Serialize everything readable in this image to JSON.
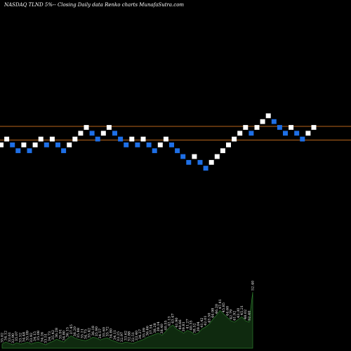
{
  "header": {
    "title": "NASDAQ TLND 5%-- Closing Daily data Renko charts MunafaSutra.com"
  },
  "colors": {
    "background": "#000000",
    "up_brick": "#ffffff",
    "down_brick": "#1e6fe6",
    "level_line": "#b8651a",
    "volume_fill": "#0f2a0f",
    "volume_stroke": "#2e7d2e"
  },
  "chart_data": {
    "type": "renko",
    "brick_percent": 5,
    "reference_lines": [
      1,
      -1
    ],
    "bricks": [
      {
        "dir": "up",
        "level": 0
      },
      {
        "dir": "up",
        "level": 1
      },
      {
        "dir": "down",
        "level": 0
      },
      {
        "dir": "down",
        "level": -1
      },
      {
        "dir": "up",
        "level": 0
      },
      {
        "dir": "down",
        "level": -1
      },
      {
        "dir": "up",
        "level": 0
      },
      {
        "dir": "up",
        "level": 1
      },
      {
        "dir": "down",
        "level": 0
      },
      {
        "dir": "up",
        "level": 1
      },
      {
        "dir": "down",
        "level": 0
      },
      {
        "dir": "down",
        "level": -1
      },
      {
        "dir": "up",
        "level": 0
      },
      {
        "dir": "up",
        "level": 1
      },
      {
        "dir": "up",
        "level": 2
      },
      {
        "dir": "up",
        "level": 3
      },
      {
        "dir": "down",
        "level": 2
      },
      {
        "dir": "down",
        "level": 1
      },
      {
        "dir": "up",
        "level": 2
      },
      {
        "dir": "up",
        "level": 3
      },
      {
        "dir": "down",
        "level": 2
      },
      {
        "dir": "down",
        "level": 1
      },
      {
        "dir": "down",
        "level": 0
      },
      {
        "dir": "up",
        "level": 1
      },
      {
        "dir": "down",
        "level": 0
      },
      {
        "dir": "up",
        "level": 1
      },
      {
        "dir": "down",
        "level": 0
      },
      {
        "dir": "down",
        "level": -1
      },
      {
        "dir": "up",
        "level": 0
      },
      {
        "dir": "up",
        "level": 1
      },
      {
        "dir": "down",
        "level": 0
      },
      {
        "dir": "down",
        "level": -1
      },
      {
        "dir": "down",
        "level": -2
      },
      {
        "dir": "down",
        "level": -3
      },
      {
        "dir": "up",
        "level": -2
      },
      {
        "dir": "down",
        "level": -3
      },
      {
        "dir": "down",
        "level": -4
      },
      {
        "dir": "up",
        "level": -3
      },
      {
        "dir": "up",
        "level": -2
      },
      {
        "dir": "up",
        "level": -1
      },
      {
        "dir": "up",
        "level": 0
      },
      {
        "dir": "up",
        "level": 1
      },
      {
        "dir": "up",
        "level": 2
      },
      {
        "dir": "up",
        "level": 3
      },
      {
        "dir": "down",
        "level": 2
      },
      {
        "dir": "up",
        "level": 3
      },
      {
        "dir": "up",
        "level": 4
      },
      {
        "dir": "up",
        "level": 5
      },
      {
        "dir": "down",
        "level": 4
      },
      {
        "dir": "down",
        "level": 3
      },
      {
        "dir": "down",
        "level": 2
      },
      {
        "dir": "up",
        "level": 3
      },
      {
        "dir": "down",
        "level": 2
      },
      {
        "dir": "down",
        "level": 1
      },
      {
        "dir": "up",
        "level": 2
      },
      {
        "dir": "up",
        "level": 3
      }
    ],
    "volume_labels": [
      "35.02",
      "34.12",
      "33.61",
      "32.90",
      "35.07",
      "33.52",
      "34.48",
      "35.09",
      "33.92",
      "34.15",
      "35.08",
      "34.26",
      "33.51",
      "34.73",
      "35.42",
      "36.28",
      "35.91",
      "34.80",
      "36.15",
      "37.45",
      "36.20",
      "35.88",
      "35.21",
      "34.75",
      "35.42",
      "36.18",
      "35.90",
      "34.57",
      "35.60",
      "35.72",
      "34.80",
      "34.11",
      "33.25",
      "32.97",
      "33.62",
      "32.88",
      "32.51",
      "33.40",
      "34.27",
      "35.09",
      "36.66",
      "37.54",
      "38.28",
      "39.14",
      "38.40",
      "40.55",
      "42.13",
      "43.47",
      "41.90",
      "40.66",
      "39.81",
      "41.27",
      "40.35",
      "38.52",
      "39.04",
      "41.42",
      "42.01",
      "43.50",
      "44.98",
      "46.20",
      "47.41",
      "45.85",
      "44.60",
      "42.79",
      "41.92",
      "43.30",
      "45.21",
      "48.02",
      "52.40",
      "52.40"
    ],
    "volume_values": [
      6,
      9,
      7,
      5,
      8,
      6,
      7,
      9,
      6,
      8,
      9,
      7,
      5,
      8,
      10,
      13,
      11,
      9,
      14,
      18,
      15,
      13,
      12,
      11,
      13,
      16,
      15,
      12,
      14,
      15,
      12,
      10,
      8,
      7,
      9,
      8,
      7,
      9,
      11,
      13,
      16,
      18,
      20,
      22,
      19,
      24,
      30,
      34,
      28,
      25,
      22,
      26,
      24,
      20,
      22,
      28,
      31,
      35,
      42,
      48,
      55,
      50,
      45,
      40,
      38,
      42,
      46,
      40,
      38,
      82
    ]
  }
}
